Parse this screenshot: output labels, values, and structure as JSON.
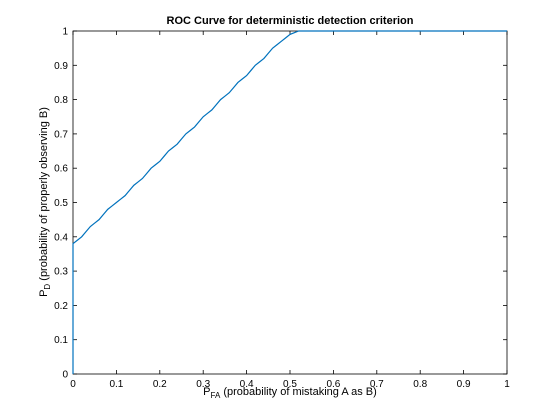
{
  "chart_data": {
    "type": "line",
    "title": "ROC Curve for deterministic detection criterion",
    "xlabel_main": "P",
    "xlabel_sub": "FA",
    "xlabel_rest": " (probability of mistaking A as B)",
    "ylabel_main": "P",
    "ylabel_sub": "D",
    "ylabel_rest": " (probability of properly observing B)",
    "xlim": [
      0,
      1
    ],
    "ylim": [
      0,
      1
    ],
    "xticks": [
      0,
      0.1,
      0.2,
      0.3,
      0.4,
      0.5,
      0.6,
      0.7,
      0.8,
      0.9,
      1
    ],
    "yticks": [
      0,
      0.1,
      0.2,
      0.3,
      0.4,
      0.5,
      0.6,
      0.7,
      0.8,
      0.9,
      1
    ],
    "xtick_labels": [
      "0",
      "0.1",
      "0.2",
      "0.3",
      "0.4",
      "0.5",
      "0.6",
      "0.7",
      "0.8",
      "0.9",
      "1"
    ],
    "ytick_labels": [
      "0",
      "0.1",
      "0.2",
      "0.3",
      "0.4",
      "0.5",
      "0.6",
      "0.7",
      "0.8",
      "0.9",
      "1"
    ],
    "grid": false,
    "line_color": "#0072BD",
    "series": [
      {
        "x": [
          0,
          0,
          0.01,
          0.02,
          0.03,
          0.04,
          0.05,
          0.06,
          0.07,
          0.08,
          0.09,
          0.1,
          0.11,
          0.12,
          0.13,
          0.14,
          0.15,
          0.16,
          0.17,
          0.18,
          0.19,
          0.2,
          0.21,
          0.22,
          0.23,
          0.24,
          0.25,
          0.26,
          0.27,
          0.28,
          0.29,
          0.3,
          0.31,
          0.32,
          0.33,
          0.34,
          0.35,
          0.36,
          0.37,
          0.38,
          0.39,
          0.4,
          0.41,
          0.42,
          0.43,
          0.44,
          0.45,
          0.46,
          0.47,
          0.48,
          0.49,
          0.5,
          0.51,
          0.52,
          0.53,
          0.6,
          0.7,
          0.8,
          0.9,
          1
        ],
        "y": [
          0,
          0.38,
          0.39,
          0.4,
          0.415,
          0.43,
          0.44,
          0.45,
          0.465,
          0.48,
          0.49,
          0.5,
          0.51,
          0.52,
          0.535,
          0.55,
          0.56,
          0.57,
          0.585,
          0.6,
          0.61,
          0.62,
          0.635,
          0.65,
          0.66,
          0.67,
          0.685,
          0.7,
          0.71,
          0.72,
          0.735,
          0.75,
          0.76,
          0.77,
          0.785,
          0.8,
          0.81,
          0.82,
          0.835,
          0.85,
          0.86,
          0.87,
          0.885,
          0.9,
          0.91,
          0.92,
          0.935,
          0.95,
          0.96,
          0.97,
          0.98,
          0.99,
          0.995,
          1.0,
          1.0,
          1.0,
          1.0,
          1.0,
          1.0,
          1.0
        ]
      }
    ]
  }
}
